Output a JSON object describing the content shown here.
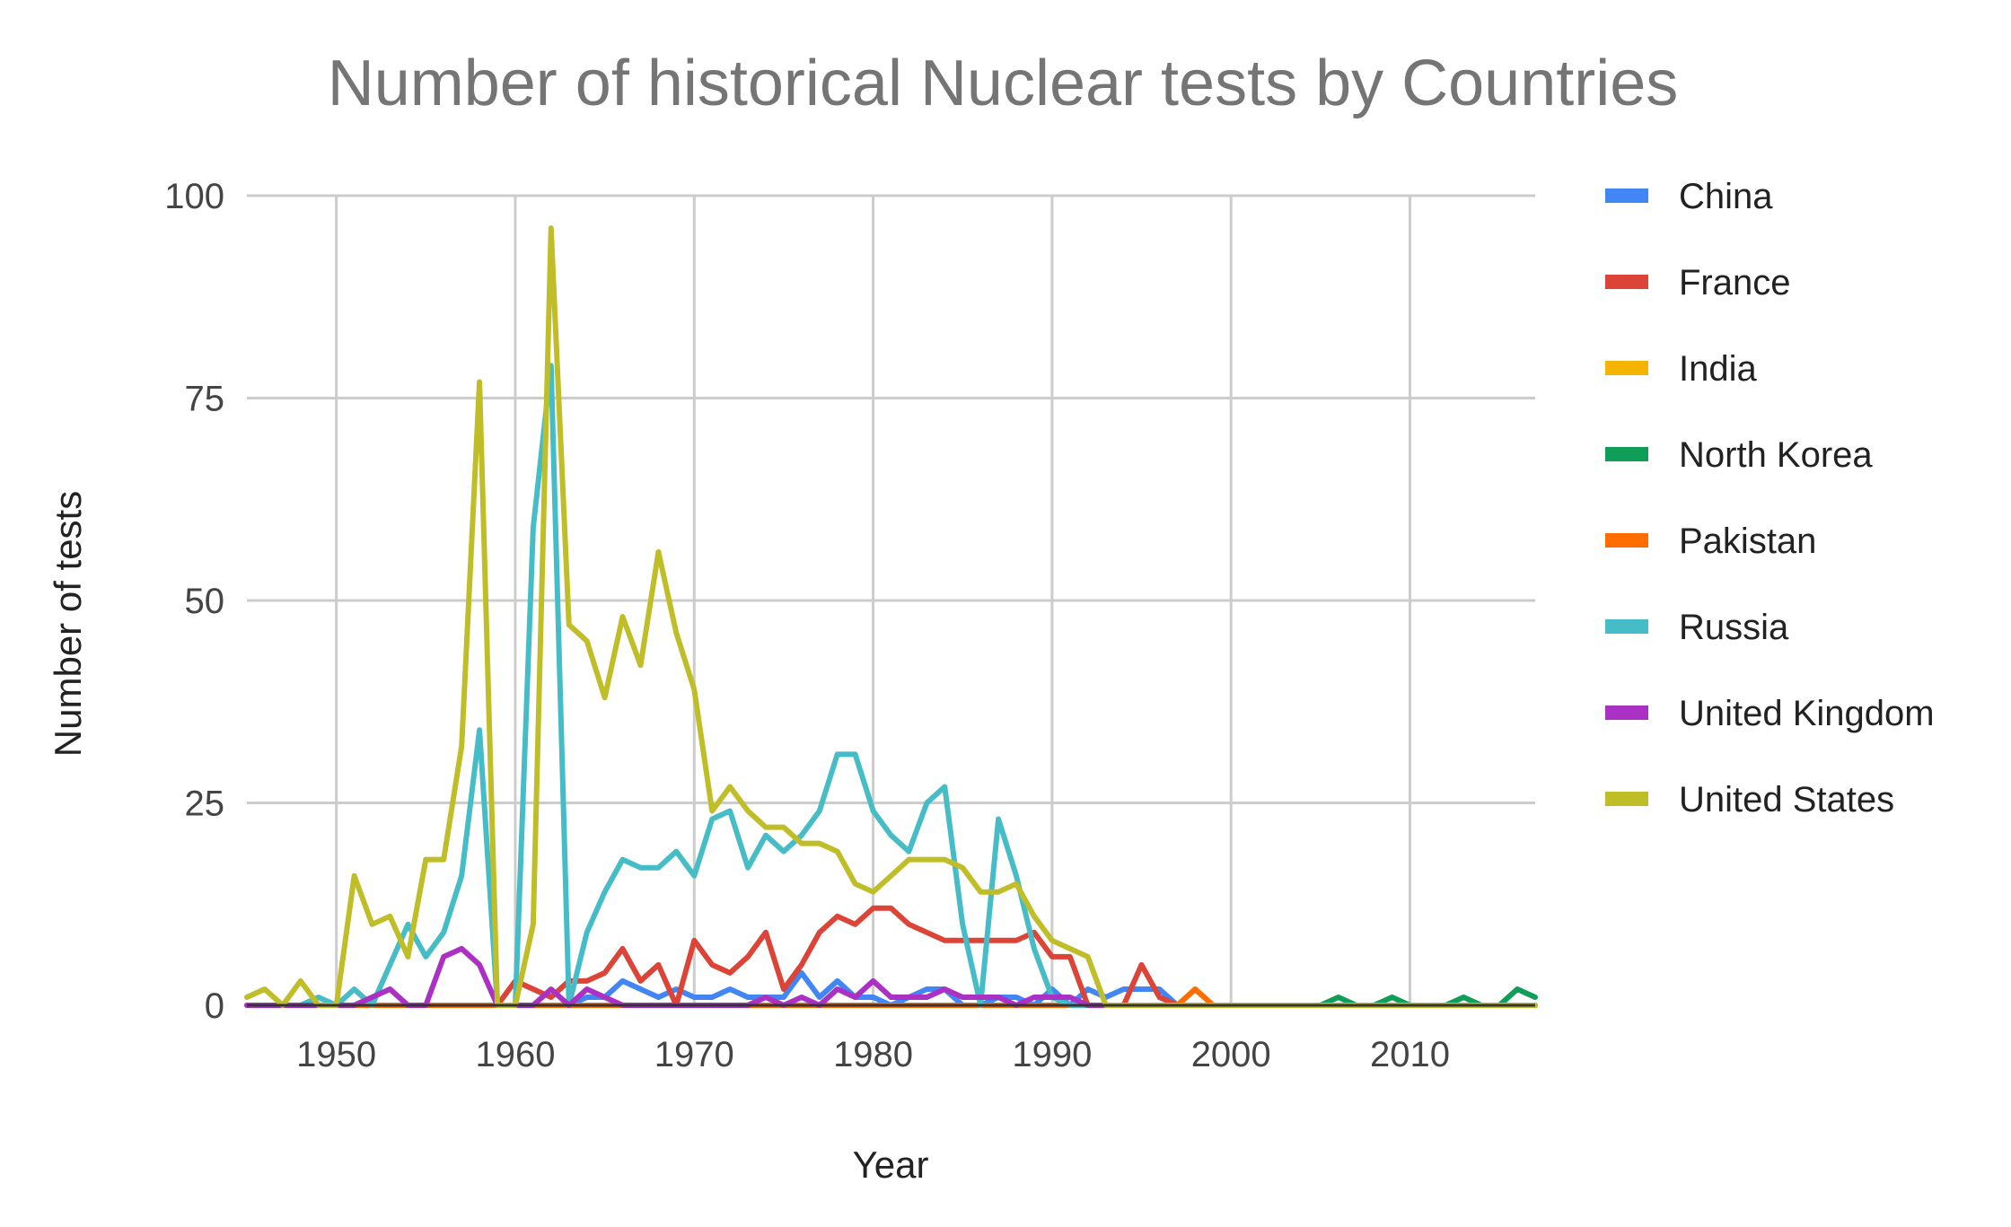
{
  "chart_data": {
    "type": "line",
    "title": "Number of historical Nuclear tests by Countries",
    "xlabel": "Year",
    "ylabel": "Number of tests",
    "xlim": [
      1945,
      2017
    ],
    "ylim": [
      0,
      100
    ],
    "x_ticks": [
      1950,
      1960,
      1970,
      1980,
      1990,
      2000,
      2010
    ],
    "y_ticks": [
      0,
      25,
      50,
      75,
      100
    ],
    "grid": true,
    "legend_position": "right",
    "years": [
      1945,
      1946,
      1947,
      1948,
      1949,
      1950,
      1951,
      1952,
      1953,
      1954,
      1955,
      1956,
      1957,
      1958,
      1959,
      1960,
      1961,
      1962,
      1963,
      1964,
      1965,
      1966,
      1967,
      1968,
      1969,
      1970,
      1971,
      1972,
      1973,
      1974,
      1975,
      1976,
      1977,
      1978,
      1979,
      1980,
      1981,
      1982,
      1983,
      1984,
      1985,
      1986,
      1987,
      1988,
      1989,
      1990,
      1991,
      1992,
      1993,
      1994,
      1995,
      1996,
      1997,
      1998,
      1999,
      2000,
      2001,
      2002,
      2003,
      2004,
      2005,
      2006,
      2007,
      2008,
      2009,
      2010,
      2011,
      2012,
      2013,
      2014,
      2015,
      2016,
      2017
    ],
    "series": [
      {
        "name": "China",
        "color": "#4285F4",
        "values": [
          0,
          0,
          0,
          0,
          0,
          0,
          0,
          0,
          0,
          0,
          0,
          0,
          0,
          0,
          0,
          0,
          0,
          0,
          0,
          1,
          1,
          3,
          2,
          1,
          2,
          1,
          1,
          2,
          1,
          1,
          1,
          4,
          1,
          3,
          1,
          1,
          0,
          1,
          2,
          2,
          0,
          0,
          1,
          1,
          0,
          2,
          0,
          2,
          1,
          2,
          2,
          2,
          0,
          0,
          0,
          0,
          0,
          0,
          0,
          0,
          0,
          0,
          0,
          0,
          0,
          0,
          0,
          0,
          0,
          0,
          0,
          0,
          0
        ]
      },
      {
        "name": "France",
        "color": "#DB4437",
        "values": [
          0,
          0,
          0,
          0,
          0,
          0,
          0,
          0,
          0,
          0,
          0,
          0,
          0,
          0,
          0,
          3,
          2,
          1,
          3,
          3,
          4,
          7,
          3,
          5,
          0,
          8,
          5,
          4,
          6,
          9,
          2,
          5,
          9,
          11,
          10,
          12,
          12,
          10,
          9,
          8,
          8,
          8,
          8,
          8,
          9,
          6,
          6,
          0,
          0,
          0,
          5,
          1,
          0,
          0,
          0,
          0,
          0,
          0,
          0,
          0,
          0,
          0,
          0,
          0,
          0,
          0,
          0,
          0,
          0,
          0,
          0,
          0,
          0
        ]
      },
      {
        "name": "India",
        "color": "#F4B400",
        "values": [
          0,
          0,
          0,
          0,
          0,
          0,
          0,
          0,
          0,
          0,
          0,
          0,
          0,
          0,
          0,
          0,
          0,
          0,
          0,
          0,
          0,
          0,
          0,
          0,
          0,
          0,
          0,
          0,
          0,
          1,
          0,
          0,
          0,
          0,
          0,
          0,
          0,
          0,
          0,
          0,
          0,
          0,
          0,
          0,
          0,
          0,
          0,
          0,
          0,
          0,
          0,
          0,
          0,
          2,
          0,
          0,
          0,
          0,
          0,
          0,
          0,
          0,
          0,
          0,
          0,
          0,
          0,
          0,
          0,
          0,
          0,
          0,
          0
        ]
      },
      {
        "name": "North Korea",
        "color": "#0F9D58",
        "values": [
          0,
          0,
          0,
          0,
          0,
          0,
          0,
          0,
          0,
          0,
          0,
          0,
          0,
          0,
          0,
          0,
          0,
          0,
          0,
          0,
          0,
          0,
          0,
          0,
          0,
          0,
          0,
          0,
          0,
          0,
          0,
          0,
          0,
          0,
          0,
          0,
          0,
          0,
          0,
          0,
          0,
          0,
          0,
          0,
          0,
          0,
          0,
          0,
          0,
          0,
          0,
          0,
          0,
          0,
          0,
          0,
          0,
          0,
          0,
          0,
          0,
          1,
          0,
          0,
          1,
          0,
          0,
          0,
          1,
          0,
          0,
          2,
          1
        ]
      },
      {
        "name": "Pakistan",
        "color": "#FF6D00",
        "values": [
          0,
          0,
          0,
          0,
          0,
          0,
          0,
          0,
          0,
          0,
          0,
          0,
          0,
          0,
          0,
          0,
          0,
          0,
          0,
          0,
          0,
          0,
          0,
          0,
          0,
          0,
          0,
          0,
          0,
          0,
          0,
          0,
          0,
          0,
          0,
          0,
          0,
          0,
          0,
          0,
          0,
          0,
          0,
          0,
          0,
          0,
          0,
          0,
          0,
          0,
          0,
          0,
          0,
          2,
          0,
          0,
          0,
          0,
          0,
          0,
          0,
          0,
          0,
          0,
          0,
          0,
          0,
          0,
          0,
          0,
          0,
          0,
          0
        ]
      },
      {
        "name": "Russia",
        "color": "#46BDC6",
        "values": [
          0,
          0,
          0,
          0,
          1,
          0,
          2,
          0,
          5,
          10,
          6,
          9,
          16,
          34,
          0,
          0,
          59,
          79,
          0,
          9,
          14,
          18,
          17,
          17,
          19,
          16,
          23,
          24,
          17,
          21,
          19,
          21,
          24,
          31,
          31,
          24,
          21,
          19,
          25,
          27,
          10,
          0,
          23,
          16,
          7,
          1,
          0,
          0,
          0,
          0,
          0,
          0,
          0,
          0,
          0,
          0,
          0,
          0,
          0,
          0,
          0,
          0,
          0,
          0,
          0,
          0,
          0,
          0,
          0,
          0,
          0,
          0,
          0
        ]
      },
      {
        "name": "United Kingdom",
        "color": "#AB30C4",
        "values": [
          0,
          0,
          0,
          0,
          0,
          0,
          0,
          1,
          2,
          0,
          0,
          6,
          7,
          5,
          0,
          0,
          0,
          2,
          0,
          2,
          1,
          0,
          0,
          0,
          0,
          0,
          0,
          0,
          0,
          1,
          0,
          1,
          0,
          2,
          1,
          3,
          1,
          1,
          1,
          2,
          1,
          1,
          1,
          0,
          1,
          1,
          1,
          0,
          0,
          0,
          0,
          0,
          0,
          0,
          0,
          0,
          0,
          0,
          0,
          0,
          0,
          0,
          0,
          0,
          0,
          0,
          0,
          0,
          0,
          0,
          0,
          0,
          0
        ]
      },
      {
        "name": "United States",
        "color": "#C0BE28",
        "values": [
          1,
          2,
          0,
          3,
          0,
          0,
          16,
          10,
          11,
          6,
          18,
          18,
          32,
          77,
          0,
          0,
          10,
          96,
          47,
          45,
          38,
          48,
          42,
          56,
          46,
          39,
          24,
          27,
          24,
          22,
          22,
          20,
          20,
          19,
          15,
          14,
          16,
          18,
          18,
          18,
          17,
          14,
          14,
          15,
          11,
          8,
          7,
          6,
          0,
          0,
          0,
          0,
          0,
          0,
          0,
          0,
          0,
          0,
          0,
          0,
          0,
          0,
          0,
          0,
          0,
          0,
          0,
          0,
          0,
          0,
          0,
          0,
          0
        ]
      }
    ]
  }
}
